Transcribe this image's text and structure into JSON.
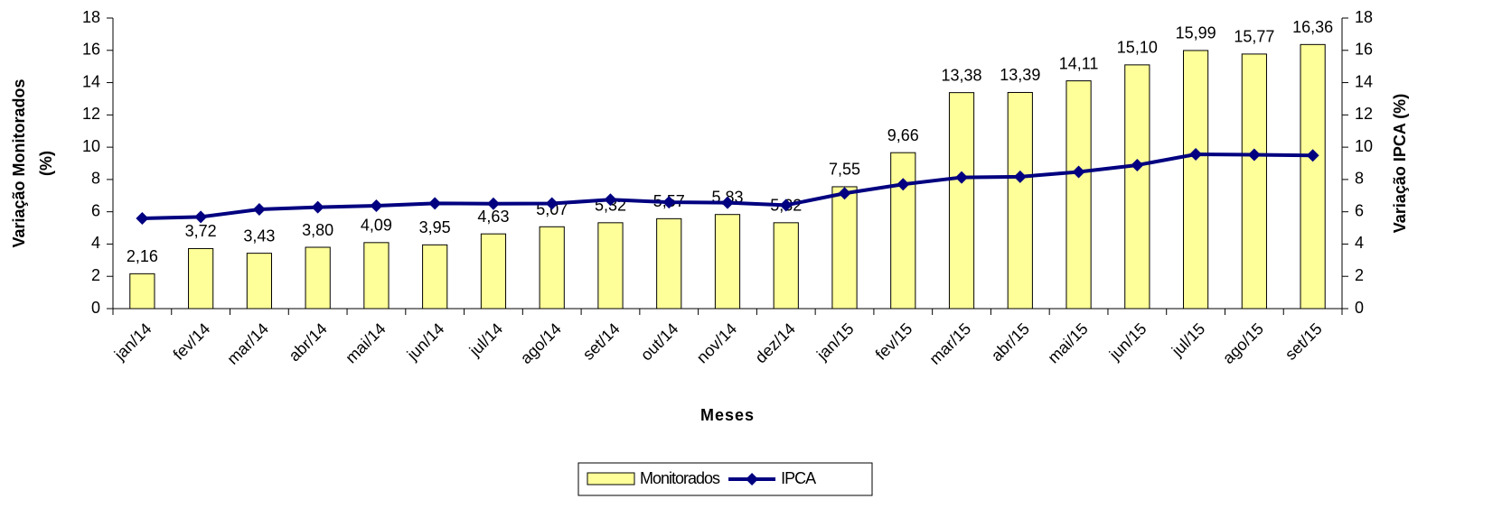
{
  "chart_data": {
    "type": "bar",
    "x_label": "Meses",
    "y_label": "Variação Monitorados (%)",
    "y2_label": "Variação IPCA (%)",
    "categories": [
      "jan/14",
      "fev/14",
      "mar/14",
      "abr/14",
      "mai/14",
      "jun/14",
      "jul/14",
      "ago/14",
      "set/14",
      "out/14",
      "nov/14",
      "dez/14",
      "jan/15",
      "fev/15",
      "mar/15",
      "abr/15",
      "mai/15",
      "jun/15",
      "jul/15",
      "ago/15",
      "set/15"
    ],
    "series": [
      {
        "name": "Monitorados",
        "type": "bar",
        "color": "#ffff99",
        "values": [
          2.16,
          3.72,
          3.43,
          3.8,
          4.09,
          3.95,
          4.63,
          5.07,
          5.32,
          5.57,
          5.83,
          5.32,
          7.55,
          9.66,
          13.38,
          13.39,
          14.11,
          15.1,
          15.99,
          15.77,
          16.36
        ],
        "value_labels": [
          "2,16",
          "3,72",
          "3,43",
          "3,80",
          "4,09",
          "3,95",
          "4,63",
          "5,07",
          "5,32",
          "5,57",
          "5,83",
          "5,32",
          "7,55",
          "9,66",
          "13,38",
          "13,39",
          "14,11",
          "15,10",
          "15,99",
          "15,77",
          "16,36"
        ]
      },
      {
        "name": "IPCA",
        "type": "line",
        "color": "#000080",
        "axis": "y2",
        "values": [
          5.59,
          5.68,
          6.15,
          6.28,
          6.37,
          6.52,
          6.5,
          6.51,
          6.75,
          6.59,
          6.56,
          6.41,
          7.14,
          7.7,
          8.13,
          8.17,
          8.47,
          8.89,
          9.56,
          9.53,
          9.49
        ]
      }
    ],
    "ylim": [
      0,
      18
    ],
    "yticks": [
      0,
      2,
      4,
      6,
      8,
      10,
      12,
      14,
      16,
      18
    ],
    "y2lim": [
      0,
      18
    ],
    "y2ticks": [
      0,
      2,
      4,
      6,
      8,
      10,
      12,
      14,
      16,
      18
    ],
    "legend": "bottom"
  }
}
